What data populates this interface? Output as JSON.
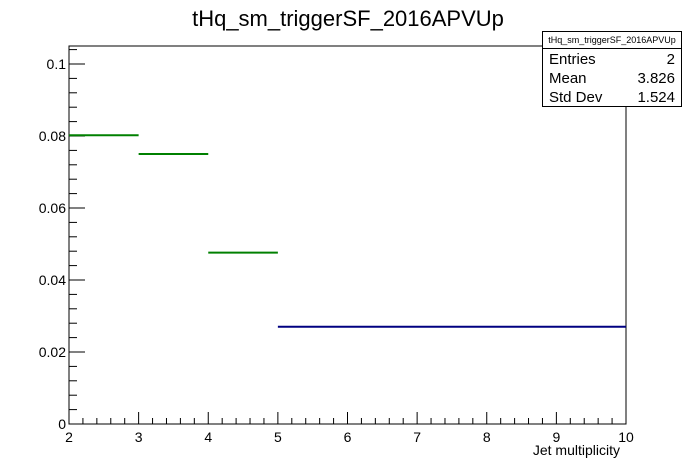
{
  "chart_data": {
    "type": "histogram",
    "title": "tHq_sm_triggerSF_2016APVUp",
    "xlabel": "Jet multiplicity",
    "ylabel": "",
    "xlim": [
      2,
      10
    ],
    "ylim": [
      0,
      0.105
    ],
    "x_ticks": [
      "2",
      "3",
      "4",
      "5",
      "6",
      "7",
      "8",
      "9",
      "10"
    ],
    "y_ticks": [
      "0",
      "0.02",
      "0.04",
      "0.06",
      "0.08",
      "0.1"
    ],
    "bins": [
      {
        "x_low": 2,
        "x_high": 3,
        "value": 0.0802,
        "color": "#008000"
      },
      {
        "x_low": 3,
        "x_high": 4,
        "value": 0.075,
        "color": "#008000"
      },
      {
        "x_low": 4,
        "x_high": 5,
        "value": 0.0476,
        "color": "#008000"
      },
      {
        "x_low": 5,
        "x_high": 10,
        "value": 0.027,
        "color": "#000080"
      }
    ],
    "stats": {
      "title": "tHq_sm_triggerSF_2016APVUp",
      "rows": [
        {
          "label": "Entries",
          "value": "2"
        },
        {
          "label": "Mean",
          "value": "3.826"
        },
        {
          "label": "Std Dev",
          "value": "1.524"
        }
      ]
    },
    "grid": false,
    "legend": "top-right"
  }
}
